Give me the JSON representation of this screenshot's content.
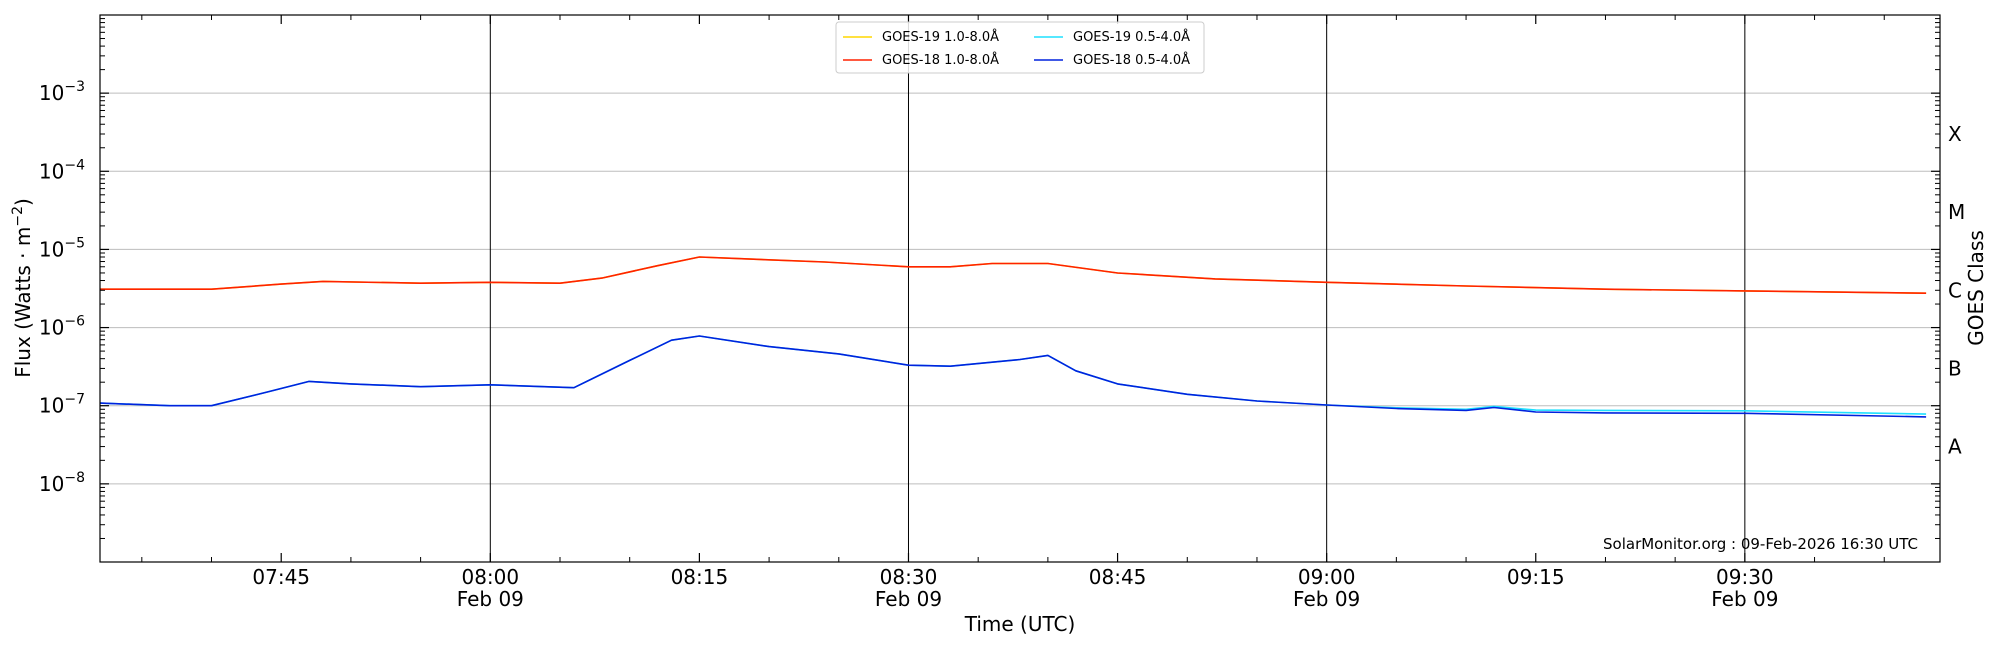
{
  "chart_data": {
    "type": "line",
    "xlabel": "Time (UTC)",
    "ylabel_main": "Flux (Watts · m",
    "ylabel_sup": "−2",
    "ylabel_close": ")",
    "y2label": "GOES Class",
    "yscale": "log",
    "ylim": [
      1e-09,
      0.01
    ],
    "xlim": [
      "07:32",
      "09:44"
    ],
    "grid": "horizontal",
    "legend_position": "top-center",
    "annotation": "SolarMonitor.org : 09-Feb-2026 16:30 UTC",
    "y_ticks": [
      {
        "value": 0.001,
        "base": "10",
        "exp": "−3"
      },
      {
        "value": 0.0001,
        "base": "10",
        "exp": "−4"
      },
      {
        "value": 1e-05,
        "base": "10",
        "exp": "−5"
      },
      {
        "value": 1e-06,
        "base": "10",
        "exp": "−6"
      },
      {
        "value": 1e-07,
        "base": "10",
        "exp": "−7"
      },
      {
        "value": 1e-08,
        "base": "10",
        "exp": "−8"
      }
    ],
    "class_labels": [
      {
        "label": "X",
        "flux": 0.0003
      },
      {
        "label": "M",
        "flux": 3e-05
      },
      {
        "label": "C",
        "flux": 3e-06
      },
      {
        "label": "B",
        "flux": 3e-07
      },
      {
        "label": "A",
        "flux": 3e-08
      }
    ],
    "x_ticks": [
      {
        "time": "07:45",
        "label": "07:45",
        "date": ""
      },
      {
        "time": "08:00",
        "label": "08:00",
        "date": "Feb 09"
      },
      {
        "time": "08:15",
        "label": "08:15",
        "date": ""
      },
      {
        "time": "08:30",
        "label": "08:30",
        "date": "Feb 09"
      },
      {
        "time": "08:45",
        "label": "08:45",
        "date": ""
      },
      {
        "time": "09:00",
        "label": "09:00",
        "date": "Feb 09"
      },
      {
        "time": "09:15",
        "label": "09:15",
        "date": ""
      },
      {
        "time": "09:30",
        "label": "09:30",
        "date": "Feb 09"
      }
    ],
    "vlines": [
      "08:00",
      "08:30",
      "09:00",
      "09:30"
    ],
    "legend": [
      {
        "name": "GOES-19 1.0-8.0Å",
        "color": "#ffd700"
      },
      {
        "name": "GOES-18 1.0-8.0Å",
        "color": "#ff2200"
      },
      {
        "name": "GOES-19 0.5-4.0Å",
        "color": "#1ee0ff"
      },
      {
        "name": "GOES-18 0.5-4.0Å",
        "color": "#0022dd"
      }
    ],
    "series": [
      {
        "name": "GOES-19 1.0-8.0Å",
        "color": "#ffd700",
        "x": [
          "07:32",
          "07:40",
          "07:45",
          "07:48",
          "07:55",
          "08:00",
          "08:05",
          "08:08",
          "08:12",
          "08:15",
          "08:18",
          "08:24",
          "08:30",
          "08:33",
          "08:36",
          "08:40",
          "08:45",
          "08:52",
          "09:00",
          "09:10",
          "09:20",
          "09:30",
          "09:43"
        ],
        "y": [
          3.1e-06,
          3.1e-06,
          3.6e-06,
          3.9e-06,
          3.7e-06,
          3.8e-06,
          3.7e-06,
          4.3e-06,
          6.2e-06,
          8e-06,
          7.6e-06,
          6.9e-06,
          6e-06,
          6e-06,
          6.6e-06,
          6.6e-06,
          5e-06,
          4.2e-06,
          3.8e-06,
          3.4e-06,
          3.1e-06,
          2.95e-06,
          2.75e-06
        ]
      },
      {
        "name": "GOES-18 1.0-8.0Å",
        "color": "#ff2200",
        "x": [
          "07:32",
          "07:40",
          "07:45",
          "07:48",
          "07:55",
          "08:00",
          "08:05",
          "08:08",
          "08:12",
          "08:15",
          "08:18",
          "08:24",
          "08:30",
          "08:33",
          "08:36",
          "08:40",
          "08:45",
          "08:52",
          "09:00",
          "09:10",
          "09:20",
          "09:30",
          "09:43"
        ],
        "y": [
          3.1e-06,
          3.1e-06,
          3.6e-06,
          3.9e-06,
          3.7e-06,
          3.8e-06,
          3.7e-06,
          4.3e-06,
          6.2e-06,
          8e-06,
          7.6e-06,
          6.9e-06,
          6e-06,
          6e-06,
          6.6e-06,
          6.6e-06,
          5e-06,
          4.2e-06,
          3.8e-06,
          3.4e-06,
          3.1e-06,
          2.95e-06,
          2.75e-06
        ]
      },
      {
        "name": "GOES-19 0.5-4.0Å",
        "color": "#1ee0ff",
        "x": [
          "07:32",
          "07:37",
          "07:40",
          "07:44",
          "07:47",
          "07:50",
          "07:55",
          "08:00",
          "08:06",
          "08:10",
          "08:13",
          "08:15",
          "08:20",
          "08:25",
          "08:30",
          "08:33",
          "08:36",
          "08:38",
          "08:40",
          "08:42",
          "08:45",
          "08:50",
          "08:55",
          "09:00",
          "09:05",
          "09:10",
          "09:12",
          "09:15",
          "09:20",
          "09:30",
          "09:43"
        ],
        "y": [
          1.08e-07,
          1e-07,
          1e-07,
          1.5e-07,
          2.05e-07,
          1.9e-07,
          1.75e-07,
          1.85e-07,
          1.7e-07,
          3.8e-07,
          6.9e-07,
          7.8e-07,
          5.7e-07,
          4.6e-07,
          3.3e-07,
          3.2e-07,
          3.6e-07,
          3.9e-07,
          4.4e-07,
          2.8e-07,
          1.9e-07,
          1.4e-07,
          1.15e-07,
          1.02e-07,
          9.4e-08,
          9e-08,
          9.8e-08,
          8.8e-08,
          8.7e-08,
          8.6e-08,
          7.8e-08
        ]
      },
      {
        "name": "GOES-18 0.5-4.0Å",
        "color": "#0022dd",
        "x": [
          "07:32",
          "07:37",
          "07:40",
          "07:44",
          "07:47",
          "07:50",
          "07:55",
          "08:00",
          "08:06",
          "08:10",
          "08:13",
          "08:15",
          "08:20",
          "08:25",
          "08:30",
          "08:33",
          "08:36",
          "08:38",
          "08:40",
          "08:42",
          "08:45",
          "08:50",
          "08:55",
          "09:00",
          "09:05",
          "09:10",
          "09:12",
          "09:15",
          "09:20",
          "09:30",
          "09:43"
        ],
        "y": [
          1.08e-07,
          1e-07,
          1e-07,
          1.5e-07,
          2.05e-07,
          1.9e-07,
          1.75e-07,
          1.85e-07,
          1.7e-07,
          3.8e-07,
          6.9e-07,
          7.8e-07,
          5.7e-07,
          4.6e-07,
          3.3e-07,
          3.2e-07,
          3.6e-07,
          3.9e-07,
          4.4e-07,
          2.8e-07,
          1.9e-07,
          1.4e-07,
          1.15e-07,
          1.02e-07,
          9.2e-08,
          8.7e-08,
          9.5e-08,
          8.3e-08,
          8.1e-08,
          8e-08,
          7.2e-08
        ]
      }
    ]
  }
}
